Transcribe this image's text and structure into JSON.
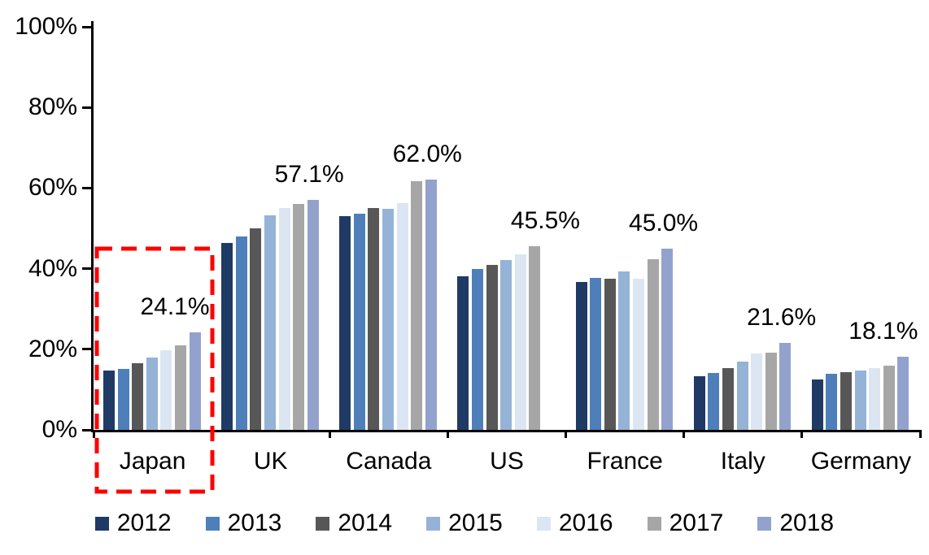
{
  "chart_data": {
    "type": "bar",
    "categories": [
      "Japan",
      "UK",
      "Canada",
      "US",
      "France",
      "Italy",
      "Germany"
    ],
    "series": [
      {
        "name": "2012",
        "color": "#1F3A64",
        "values": [
          14.8,
          46.3,
          53.0,
          38.2,
          36.6,
          13.3,
          12.5
        ]
      },
      {
        "name": "2013",
        "color": "#4E7FBA",
        "values": [
          15.1,
          47.9,
          53.6,
          39.9,
          37.7,
          14.2,
          13.9
        ]
      },
      {
        "name": "2014",
        "color": "#575757",
        "values": [
          16.5,
          50.1,
          55.0,
          41.0,
          37.6,
          15.4,
          14.3
        ]
      },
      {
        "name": "2015",
        "color": "#95B3D7",
        "values": [
          18.0,
          53.3,
          54.8,
          42.1,
          39.3,
          16.9,
          14.8
        ]
      },
      {
        "name": "2016",
        "color": "#DCE6F2",
        "values": [
          19.8,
          55.1,
          56.3,
          43.6,
          37.4,
          19.0,
          15.4
        ]
      },
      {
        "name": "2017",
        "color": "#A6A6A6",
        "values": [
          21.0,
          56.1,
          61.7,
          45.5,
          42.4,
          19.2,
          16.0
        ]
      },
      {
        "name": "2018",
        "color": "#93A2CD",
        "values": [
          24.1,
          57.1,
          62.0,
          null,
          45.0,
          21.6,
          18.1
        ]
      }
    ],
    "data_labels": [
      "24.1%",
      "57.1%",
      "62.0%",
      "45.5%",
      "45.0%",
      "21.6%",
      "18.1%"
    ],
    "yticks": [
      "0%",
      "20%",
      "40%",
      "60%",
      "80%",
      "100%"
    ],
    "ylim": [
      0,
      100
    ],
    "grid": false,
    "legend_position": "bottom",
    "axis_color": "#000000",
    "annotation": {
      "shape": "dashed-rectangle",
      "around_category": "Japan",
      "color": "#FF0000"
    }
  }
}
